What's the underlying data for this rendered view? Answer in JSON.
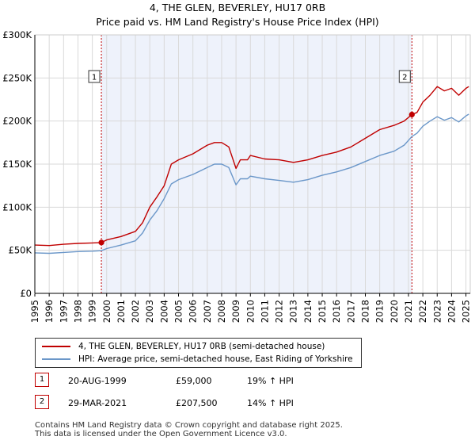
{
  "title_line1": "4, THE GLEN, BEVERLEY, HU17 0RB",
  "title_line2": "Price paid vs. HM Land Registry's House Price Index (HPI)",
  "legend": [
    {
      "label": "4, THE GLEN, BEVERLEY, HU17 0RB (semi-detached house)",
      "color": "#c00000"
    },
    {
      "label": "HPI: Average price, semi-detached house, East Riding of Yorkshire",
      "color": "#6b97c9"
    }
  ],
  "sales": [
    {
      "num": "1",
      "date": "20-AUG-1999",
      "price": "£59,000",
      "hpi": "19% ↑ HPI"
    },
    {
      "num": "2",
      "date": "29-MAR-2021",
      "price": "£207,500",
      "hpi": "14% ↑ HPI"
    }
  ],
  "footer_line1": "Contains HM Land Registry data © Crown copyright and database right 2025.",
  "footer_line2": "This data is licensed under the Open Government Licence v3.0.",
  "colors": {
    "price_line": "#c00000",
    "hpi_line": "#6b97c9",
    "shade": "#eef2fb",
    "grid": "#d9d9d9"
  },
  "chart_data": {
    "type": "line",
    "x_range": [
      1995,
      2025.3
    ],
    "ylim": [
      0,
      300000
    ],
    "y_ticks": [
      {
        "value": 0,
        "label": "£0"
      },
      {
        "value": 50000,
        "label": "£50K"
      },
      {
        "value": 100000,
        "label": "£100K"
      },
      {
        "value": 150000,
        "label": "£150K"
      },
      {
        "value": 200000,
        "label": "£200K"
      },
      {
        "value": 250000,
        "label": "£250K"
      },
      {
        "value": 300000,
        "label": "£300K"
      }
    ],
    "x_ticks": [
      "1995",
      "1996",
      "1997",
      "1998",
      "1999",
      "2000",
      "2001",
      "2002",
      "2003",
      "2004",
      "2005",
      "2006",
      "2007",
      "2008",
      "2009",
      "2010",
      "2011",
      "2012",
      "2013",
      "2014",
      "2015",
      "2016",
      "2017",
      "2018",
      "2019",
      "2020",
      "2021",
      "2022",
      "2023",
      "2024",
      "2025"
    ],
    "shaded_region": [
      1999.63,
      2021.24
    ],
    "markers": [
      {
        "label": "1",
        "x": 1999.63,
        "y": 59000
      },
      {
        "label": "2",
        "x": 2021.24,
        "y": 207500
      }
    ],
    "series": [
      {
        "name": "4, THE GLEN, BEVERLEY, HU17 0RB (semi-detached house)",
        "x": [
          1995,
          1996,
          1997,
          1998,
          1999,
          1999.63,
          2000,
          2001,
          2002,
          2002.5,
          2003,
          2003.5,
          2004,
          2004.5,
          2005,
          2006,
          2007,
          2007.5,
          2008,
          2008.5,
          2009,
          2009.3,
          2009.8,
          2010,
          2011,
          2012,
          2013,
          2014,
          2015,
          2016,
          2017,
          2018,
          2019,
          2020,
          2020.7,
          2021.24,
          2021.6,
          2022,
          2022.5,
          2023,
          2023.5,
          2024,
          2024.5,
          2025,
          2025.2
        ],
        "values": [
          56000,
          55500,
          57000,
          58000,
          58500,
          59000,
          62000,
          66000,
          72000,
          82000,
          100000,
          112000,
          125000,
          150000,
          155000,
          162000,
          172000,
          175000,
          175000,
          170000,
          145000,
          155000,
          155000,
          160000,
          156000,
          155000,
          152000,
          155000,
          160000,
          164000,
          170000,
          180000,
          190000,
          195000,
          200000,
          207500,
          210000,
          222000,
          230000,
          240000,
          235000,
          238000,
          230000,
          238000,
          240000
        ]
      },
      {
        "name": "HPI: Average price, semi-detached house, East Riding of Yorkshire",
        "x": [
          1995,
          1996,
          1997,
          1998,
          1999,
          1999.63,
          2000,
          2001,
          2002,
          2002.5,
          2003,
          2003.5,
          2004,
          2004.5,
          2005,
          2006,
          2007,
          2007.5,
          2008,
          2008.5,
          2009,
          2009.3,
          2009.8,
          2010,
          2011,
          2012,
          2013,
          2014,
          2015,
          2016,
          2017,
          2018,
          2019,
          2020,
          2020.7,
          2021.24,
          2021.6,
          2022,
          2022.5,
          2023,
          2023.5,
          2024,
          2024.5,
          2025,
          2025.2
        ],
        "values": [
          47000,
          46500,
          47500,
          48500,
          49000,
          49500,
          52000,
          56000,
          61000,
          70000,
          85000,
          96000,
          110000,
          127000,
          132000,
          138000,
          146000,
          150000,
          150000,
          146000,
          126000,
          133000,
          133000,
          136000,
          133000,
          131000,
          129000,
          132000,
          137000,
          141000,
          146000,
          153000,
          160000,
          165000,
          172000,
          182000,
          186000,
          194000,
          200000,
          205000,
          201000,
          204000,
          199000,
          206000,
          208000
        ]
      }
    ]
  }
}
